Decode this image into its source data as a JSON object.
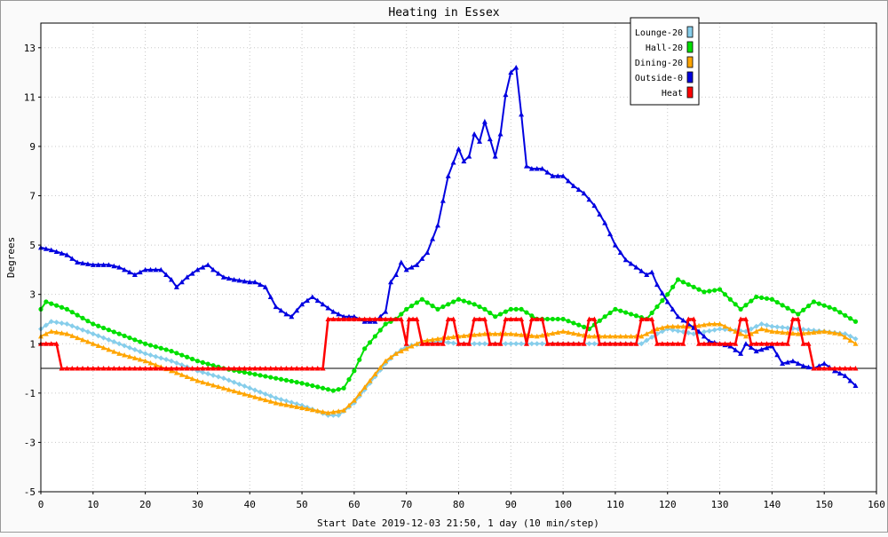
{
  "chart_data": {
    "type": "line",
    "title": "Heating in Essex",
    "xlabel": "Start Date 2019-12-03 21:50, 1 day (10 min/step)",
    "ylabel": "Degrees",
    "xlim": [
      0,
      160
    ],
    "ylim": [
      -5,
      14
    ],
    "x_ticks": [
      0,
      10,
      20,
      30,
      40,
      50,
      60,
      70,
      80,
      90,
      100,
      110,
      120,
      130,
      140,
      150,
      160
    ],
    "y_ticks": [
      -5,
      -3,
      -1,
      1,
      3,
      5,
      7,
      9,
      11,
      13
    ],
    "grid": true,
    "legend_position": "top-right",
    "series": [
      {
        "name": "Lounge-20",
        "color": "#87ceeb",
        "marker": "diamond",
        "points": [
          [
            0,
            1.6
          ],
          [
            2,
            1.9
          ],
          [
            5,
            1.8
          ],
          [
            10,
            1.4
          ],
          [
            15,
            1.0
          ],
          [
            20,
            0.6
          ],
          [
            25,
            0.3
          ],
          [
            30,
            -0.1
          ],
          [
            35,
            -0.4
          ],
          [
            40,
            -0.8
          ],
          [
            45,
            -1.2
          ],
          [
            50,
            -1.5
          ],
          [
            55,
            -1.9
          ],
          [
            57,
            -1.9
          ],
          [
            60,
            -1.4
          ],
          [
            63,
            -0.6
          ],
          [
            66,
            0.2
          ],
          [
            68,
            0.6
          ],
          [
            70,
            0.9
          ],
          [
            73,
            1.0
          ],
          [
            76,
            1.1
          ],
          [
            80,
            1.0
          ],
          [
            85,
            1.0
          ],
          [
            90,
            1.0
          ],
          [
            95,
            1.0
          ],
          [
            100,
            1.0
          ],
          [
            105,
            1.0
          ],
          [
            110,
            1.0
          ],
          [
            113,
            1.0
          ],
          [
            115,
            1.0
          ],
          [
            118,
            1.4
          ],
          [
            120,
            1.6
          ],
          [
            125,
            1.4
          ],
          [
            130,
            1.6
          ],
          [
            135,
            1.5
          ],
          [
            138,
            1.8
          ],
          [
            140,
            1.7
          ],
          [
            145,
            1.6
          ],
          [
            150,
            1.5
          ],
          [
            154,
            1.4
          ],
          [
            156,
            1.2
          ]
        ]
      },
      {
        "name": "Hall-20",
        "color": "#00e000",
        "marker": "circle",
        "points": [
          [
            0,
            2.4
          ],
          [
            1,
            2.7
          ],
          [
            5,
            2.4
          ],
          [
            10,
            1.8
          ],
          [
            15,
            1.4
          ],
          [
            20,
            1.0
          ],
          [
            25,
            0.7
          ],
          [
            30,
            0.3
          ],
          [
            35,
            0.0
          ],
          [
            40,
            -0.2
          ],
          [
            45,
            -0.4
          ],
          [
            50,
            -0.6
          ],
          [
            54,
            -0.8
          ],
          [
            56,
            -0.9
          ],
          [
            58,
            -0.8
          ],
          [
            60,
            -0.1
          ],
          [
            62,
            0.8
          ],
          [
            64,
            1.3
          ],
          [
            66,
            1.8
          ],
          [
            68,
            2.0
          ],
          [
            70,
            2.4
          ],
          [
            73,
            2.8
          ],
          [
            76,
            2.4
          ],
          [
            80,
            2.8
          ],
          [
            83,
            2.6
          ],
          [
            85,
            2.4
          ],
          [
            87,
            2.1
          ],
          [
            90,
            2.4
          ],
          [
            92,
            2.4
          ],
          [
            95,
            2.0
          ],
          [
            100,
            2.0
          ],
          [
            105,
            1.6
          ],
          [
            108,
            2.1
          ],
          [
            110,
            2.4
          ],
          [
            113,
            2.2
          ],
          [
            116,
            2.0
          ],
          [
            120,
            3.0
          ],
          [
            122,
            3.6
          ],
          [
            125,
            3.3
          ],
          [
            127,
            3.1
          ],
          [
            130,
            3.2
          ],
          [
            134,
            2.4
          ],
          [
            137,
            2.9
          ],
          [
            140,
            2.8
          ],
          [
            145,
            2.2
          ],
          [
            148,
            2.7
          ],
          [
            152,
            2.4
          ],
          [
            156,
            1.9
          ]
        ]
      },
      {
        "name": "Dining-20",
        "color": "#ffa500",
        "marker": "triangle",
        "points": [
          [
            0,
            1.3
          ],
          [
            2,
            1.5
          ],
          [
            5,
            1.4
          ],
          [
            10,
            1.0
          ],
          [
            15,
            0.6
          ],
          [
            20,
            0.3
          ],
          [
            25,
            -0.1
          ],
          [
            30,
            -0.5
          ],
          [
            35,
            -0.8
          ],
          [
            40,
            -1.1
          ],
          [
            45,
            -1.4
          ],
          [
            50,
            -1.6
          ],
          [
            55,
            -1.8
          ],
          [
            58,
            -1.7
          ],
          [
            60,
            -1.3
          ],
          [
            63,
            -0.5
          ],
          [
            66,
            0.3
          ],
          [
            68,
            0.6
          ],
          [
            70,
            0.8
          ],
          [
            73,
            1.1
          ],
          [
            76,
            1.2
          ],
          [
            80,
            1.3
          ],
          [
            85,
            1.4
          ],
          [
            90,
            1.4
          ],
          [
            95,
            1.3
          ],
          [
            100,
            1.5
          ],
          [
            105,
            1.3
          ],
          [
            108,
            1.3
          ],
          [
            112,
            1.3
          ],
          [
            115,
            1.3
          ],
          [
            118,
            1.6
          ],
          [
            120,
            1.7
          ],
          [
            125,
            1.7
          ],
          [
            128,
            1.8
          ],
          [
            130,
            1.8
          ],
          [
            135,
            1.3
          ],
          [
            138,
            1.6
          ],
          [
            140,
            1.5
          ],
          [
            145,
            1.4
          ],
          [
            150,
            1.5
          ],
          [
            153,
            1.4
          ],
          [
            156,
            1.0
          ]
        ]
      },
      {
        "name": "Outside-0",
        "color": "#0000e0",
        "marker": "triangle",
        "points": [
          [
            0,
            4.9
          ],
          [
            2,
            4.8
          ],
          [
            5,
            4.6
          ],
          [
            7,
            4.3
          ],
          [
            10,
            4.2
          ],
          [
            13,
            4.2
          ],
          [
            15,
            4.1
          ],
          [
            17,
            3.9
          ],
          [
            18,
            3.8
          ],
          [
            20,
            4.0
          ],
          [
            23,
            4.0
          ],
          [
            25,
            3.6
          ],
          [
            26,
            3.3
          ],
          [
            28,
            3.7
          ],
          [
            30,
            4.0
          ],
          [
            32,
            4.2
          ],
          [
            33,
            4.0
          ],
          [
            35,
            3.7
          ],
          [
            37,
            3.6
          ],
          [
            40,
            3.5
          ],
          [
            41,
            3.5
          ],
          [
            43,
            3.3
          ],
          [
            44,
            2.9
          ],
          [
            45,
            2.5
          ],
          [
            47,
            2.2
          ],
          [
            48,
            2.1
          ],
          [
            50,
            2.6
          ],
          [
            52,
            2.9
          ],
          [
            54,
            2.6
          ],
          [
            56,
            2.3
          ],
          [
            58,
            2.1
          ],
          [
            60,
            2.1
          ],
          [
            62,
            1.9
          ],
          [
            64,
            1.9
          ],
          [
            66,
            2.3
          ],
          [
            67,
            3.5
          ],
          [
            68,
            3.8
          ],
          [
            69,
            4.3
          ],
          [
            70,
            4.0
          ],
          [
            72,
            4.2
          ],
          [
            74,
            4.7
          ],
          [
            76,
            5.8
          ],
          [
            78,
            7.8
          ],
          [
            80,
            8.9
          ],
          [
            81,
            8.4
          ],
          [
            82,
            8.6
          ],
          [
            83,
            9.5
          ],
          [
            84,
            9.2
          ],
          [
            85,
            10.0
          ],
          [
            86,
            9.3
          ],
          [
            87,
            8.6
          ],
          [
            88,
            9.5
          ],
          [
            89,
            11.1
          ],
          [
            90,
            12.0
          ],
          [
            91,
            12.2
          ],
          [
            92,
            10.3
          ],
          [
            93,
            8.2
          ],
          [
            94,
            8.1
          ],
          [
            96,
            8.1
          ],
          [
            98,
            7.8
          ],
          [
            100,
            7.8
          ],
          [
            102,
            7.4
          ],
          [
            104,
            7.1
          ],
          [
            106,
            6.6
          ],
          [
            108,
            5.9
          ],
          [
            110,
            5.0
          ],
          [
            112,
            4.4
          ],
          [
            114,
            4.1
          ],
          [
            116,
            3.8
          ],
          [
            117,
            3.9
          ],
          [
            118,
            3.4
          ],
          [
            120,
            2.7
          ],
          [
            122,
            2.1
          ],
          [
            124,
            1.8
          ],
          [
            126,
            1.5
          ],
          [
            128,
            1.1
          ],
          [
            130,
            1.0
          ],
          [
            132,
            0.9
          ],
          [
            134,
            0.6
          ],
          [
            135,
            1.0
          ],
          [
            137,
            0.7
          ],
          [
            140,
            0.9
          ],
          [
            142,
            0.2
          ],
          [
            144,
            0.3
          ],
          [
            146,
            0.1
          ],
          [
            148,
            0.0
          ],
          [
            150,
            0.2
          ],
          [
            152,
            -0.1
          ],
          [
            154,
            -0.3
          ],
          [
            156,
            -0.7
          ]
        ]
      },
      {
        "name": "Heat",
        "color": "#ff0000",
        "marker": "triangle",
        "points": [
          [
            0,
            1
          ],
          [
            3,
            1
          ],
          [
            4,
            0
          ],
          [
            54,
            0
          ],
          [
            55,
            2
          ],
          [
            69,
            2
          ],
          [
            70,
            1
          ],
          [
            70.5,
            2
          ],
          [
            72,
            2
          ],
          [
            73,
            1
          ],
          [
            77,
            1
          ],
          [
            78,
            2
          ],
          [
            79,
            2
          ],
          [
            80,
            1
          ],
          [
            82,
            1
          ],
          [
            83,
            2
          ],
          [
            85,
            2
          ],
          [
            86,
            1
          ],
          [
            88,
            1
          ],
          [
            89,
            2
          ],
          [
            92,
            2
          ],
          [
            93,
            1
          ],
          [
            94,
            2
          ],
          [
            96,
            2
          ],
          [
            97,
            1
          ],
          [
            104,
            1
          ],
          [
            105,
            2
          ],
          [
            106,
            2
          ],
          [
            107,
            1
          ],
          [
            114,
            1
          ],
          [
            115,
            2
          ],
          [
            117,
            2
          ],
          [
            118,
            1
          ],
          [
            123,
            1
          ],
          [
            124,
            2
          ],
          [
            125,
            2
          ],
          [
            126,
            1
          ],
          [
            133,
            1
          ],
          [
            134,
            2
          ],
          [
            135,
            2
          ],
          [
            136,
            1
          ],
          [
            143,
            1
          ],
          [
            144,
            2
          ],
          [
            145,
            2
          ],
          [
            146,
            1
          ],
          [
            147,
            1
          ],
          [
            148,
            0
          ],
          [
            156,
            0
          ]
        ]
      }
    ]
  }
}
